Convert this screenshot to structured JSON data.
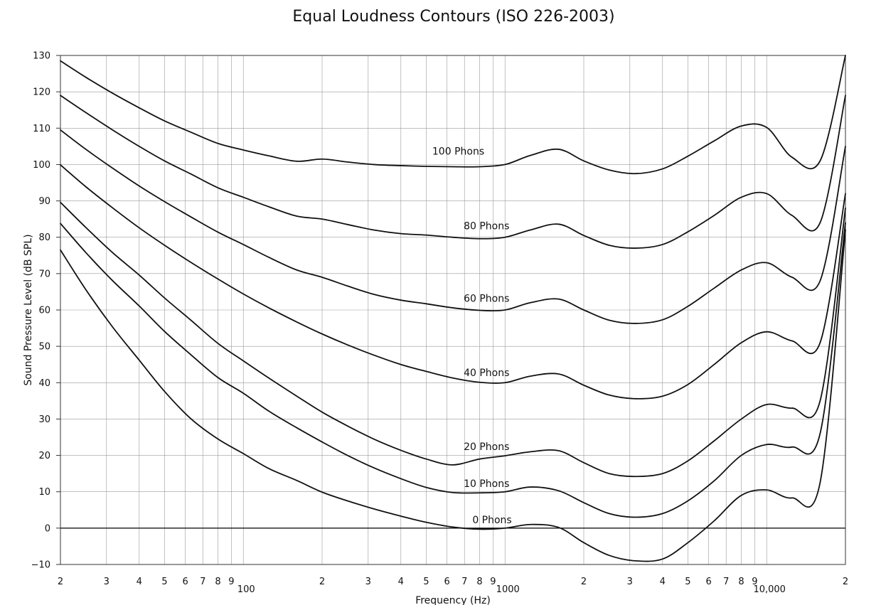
{
  "chart_data": {
    "type": "line",
    "title": "Equal Loudness Contours (ISO 226-2003)",
    "xlabel": "Frequency (Hz)",
    "ylabel": "Sound Pressure Level (dB SPL)",
    "x_scale": "log",
    "xlim": [
      20,
      20000
    ],
    "ylim": [
      -10,
      130
    ],
    "grid": true,
    "y_ticks": [
      -10,
      0,
      10,
      20,
      30,
      40,
      50,
      60,
      70,
      80,
      90,
      100,
      110,
      120,
      130
    ],
    "x_tick_labels": [
      {
        "f": 20,
        "label": "2"
      },
      {
        "f": 30,
        "label": "3"
      },
      {
        "f": 40,
        "label": "4"
      },
      {
        "f": 50,
        "label": "5"
      },
      {
        "f": 60,
        "label": "6"
      },
      {
        "f": 70,
        "label": "7"
      },
      {
        "f": 80,
        "label": "8"
      },
      {
        "f": 90,
        "label": "9"
      },
      {
        "f": 100,
        "label": "100"
      },
      {
        "f": 200,
        "label": "2"
      },
      {
        "f": 300,
        "label": "3"
      },
      {
        "f": 400,
        "label": "4"
      },
      {
        "f": 500,
        "label": "5"
      },
      {
        "f": 600,
        "label": "6"
      },
      {
        "f": 700,
        "label": "7"
      },
      {
        "f": 800,
        "label": "8"
      },
      {
        "f": 900,
        "label": "9"
      },
      {
        "f": 1000,
        "label": "1000"
      },
      {
        "f": 2000,
        "label": "2"
      },
      {
        "f": 3000,
        "label": "3"
      },
      {
        "f": 4000,
        "label": "4"
      },
      {
        "f": 5000,
        "label": "5"
      },
      {
        "f": 6000,
        "label": "6"
      },
      {
        "f": 7000,
        "label": "7"
      },
      {
        "f": 8000,
        "label": "8"
      },
      {
        "f": 9000,
        "label": "9"
      },
      {
        "f": 10000,
        "label": "10,000"
      },
      {
        "f": 20000,
        "label": "2"
      }
    ],
    "x": [
      20,
      25,
      31.5,
      40,
      50,
      63,
      80,
      100,
      125,
      160,
      200,
      250,
      315,
      400,
      500,
      630,
      800,
      1000,
      1250,
      1600,
      2000,
      2500,
      3150,
      4000,
      5000,
      6300,
      8000,
      10000,
      12500,
      16000,
      20000
    ],
    "series": [
      {
        "name": "0 Phons",
        "values": [
          76.5,
          65.6,
          55.5,
          46.2,
          37.6,
          30.1,
          24.5,
          20.5,
          16.4,
          13.1,
          9.9,
          7.5,
          5.3,
          3.3,
          1.6,
          0.3,
          -0.3,
          0.0,
          1.0,
          0.2,
          -4.0,
          -7.5,
          -9.0,
          -8.5,
          -4.0,
          2.0,
          9.0,
          10.5,
          8.3,
          12.5,
          82.0
        ]
      },
      {
        "name": "10 Phons",
        "values": [
          83.8,
          75.8,
          68.2,
          61.1,
          54.1,
          47.7,
          41.4,
          37.1,
          32.2,
          27.6,
          23.7,
          20.0,
          16.6,
          13.6,
          11.2,
          9.8,
          9.7,
          10.0,
          11.3,
          10.3,
          7.0,
          4.0,
          3.0,
          4.0,
          7.5,
          13.0,
          20.0,
          23.0,
          22.3,
          26.0,
          84.0
        ]
      },
      {
        "name": "20 Phons",
        "values": [
          89.6,
          82.7,
          75.9,
          69.6,
          63.3,
          57.2,
          50.8,
          46.0,
          41.3,
          36.3,
          31.9,
          28.1,
          24.5,
          21.4,
          19.0,
          17.4,
          19.0,
          19.9,
          21.0,
          21.3,
          18.0,
          15.0,
          14.2,
          15.0,
          18.5,
          24.0,
          30.0,
          34.0,
          33.0,
          35.0,
          88.0
        ]
      },
      {
        "name": "40 Phons",
        "values": [
          99.9,
          93.9,
          88.2,
          82.6,
          77.8,
          73.1,
          68.5,
          64.4,
          60.6,
          56.7,
          53.4,
          50.4,
          47.6,
          45.0,
          43.1,
          41.3,
          40.1,
          40.0,
          41.8,
          42.4,
          39.3,
          36.6,
          35.6,
          36.3,
          39.5,
          45.0,
          51.0,
          54.0,
          51.5,
          51.0,
          92.0
        ]
      },
      {
        "name": "60 Phons",
        "values": [
          109.5,
          104.2,
          99.1,
          94.1,
          89.8,
          85.6,
          81.4,
          78.0,
          74.5,
          71.0,
          69.0,
          66.6,
          64.3,
          62.7,
          61.7,
          60.6,
          59.9,
          60.0,
          62.0,
          63.0,
          60.0,
          57.2,
          56.3,
          57.3,
          61.0,
          66.0,
          71.0,
          73.0,
          69.0,
          68.0,
          105.0
        ]
      },
      {
        "name": "80 Phons",
        "values": [
          119.0,
          114.3,
          109.6,
          105.0,
          101.0,
          97.4,
          93.6,
          91.0,
          88.4,
          85.8,
          85.0,
          83.5,
          82.0,
          81.0,
          80.6,
          80.0,
          79.6,
          80.0,
          82.0,
          83.6,
          80.5,
          77.8,
          77.0,
          78.0,
          81.5,
          86.0,
          91.0,
          92.0,
          86.0,
          84.0,
          119.0
        ]
      },
      {
        "name": "100 Phons",
        "values": [
          128.5,
          124.0,
          119.7,
          115.6,
          112.0,
          108.9,
          105.8,
          104.0,
          102.4,
          100.9,
          101.5,
          100.7,
          100.0,
          99.7,
          99.5,
          99.4,
          99.4,
          100.0,
          102.5,
          104.2,
          101.0,
          98.5,
          97.5,
          98.8,
          102.3,
          106.5,
          110.6,
          110.2,
          102.0,
          101.0,
          130.0
        ]
      }
    ],
    "curve_labels": [
      {
        "text": "0 Phons",
        "f": 1050,
        "y": 2.3
      },
      {
        "text": "10 Phons",
        "f": 1000,
        "y": 12.3
      },
      {
        "text": "20 Phons",
        "f": 1000,
        "y": 22.5
      },
      {
        "text": "40 Phons",
        "f": 1000,
        "y": 42.8
      },
      {
        "text": "60 Phons",
        "f": 1000,
        "y": 63.2
      },
      {
        "text": "80 Phons",
        "f": 1000,
        "y": 83.2
      },
      {
        "text": "100 Phons",
        "f": 780,
        "y": 103.7
      }
    ]
  }
}
